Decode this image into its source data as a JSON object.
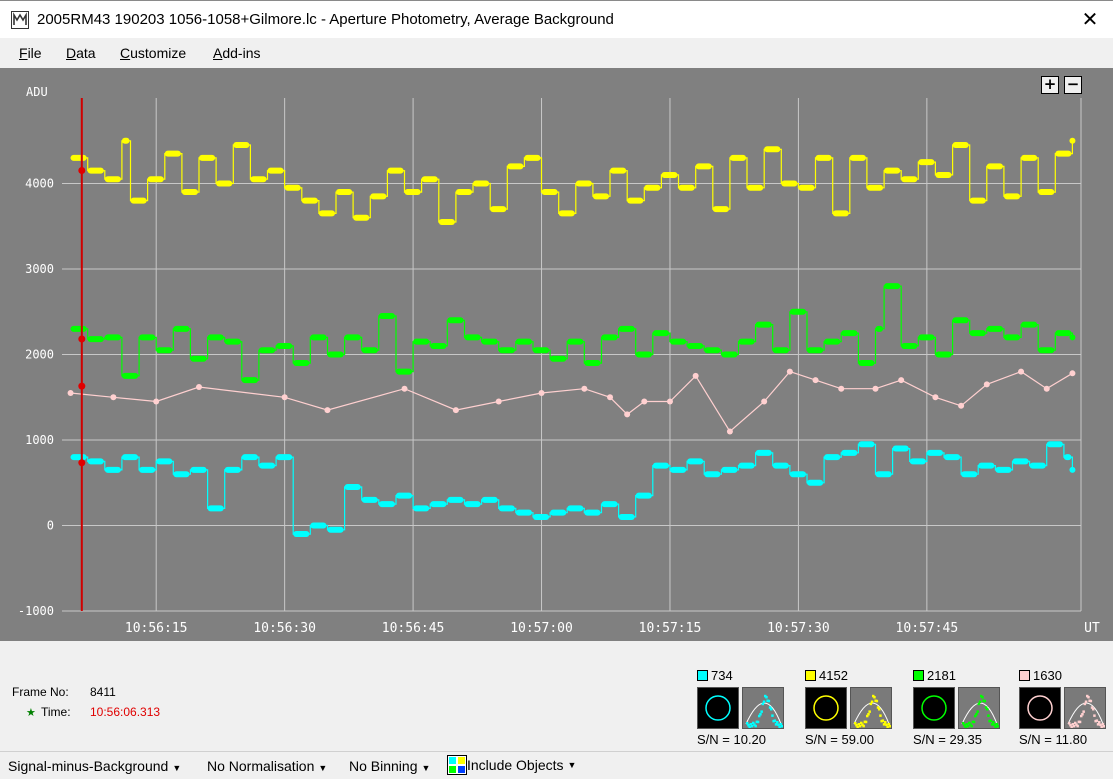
{
  "window": {
    "title": "2005RM43 190203 1056-1058+Gilmore.lc - Aperture Photometry, Average Background",
    "close_glyph": "✕",
    "icon": "app-icon"
  },
  "menu": [
    {
      "hotkey": "F",
      "rest": "ile"
    },
    {
      "hotkey": "D",
      "rest": "ata"
    },
    {
      "hotkey": "C",
      "rest": "ustomize"
    },
    {
      "hotkey": "A",
      "rest": "dd-ins"
    }
  ],
  "zoom": {
    "plus": "+",
    "minus": "−"
  },
  "chart_data": {
    "type": "line",
    "ylabel": "ADU",
    "xlabel": "UT",
    "ylim": [
      -1000,
      5000
    ],
    "yticks": [
      -1000,
      0,
      1000,
      2000,
      3000,
      4000
    ],
    "xlim": [
      "10:56:04",
      "10:58:03"
    ],
    "xticks": [
      "10:56:15",
      "10:56:30",
      "10:56:45",
      "10:57:00",
      "10:57:15",
      "10:57:30",
      "10:57:45"
    ],
    "grid": true,
    "background": "#808080",
    "cursor_time": "10:56:06.313",
    "series": [
      {
        "color": "#ffff00",
        "cursor_value": 4152,
        "points": [
          [
            "10:56:05",
            4300
          ],
          [
            "10:56:07",
            4150
          ],
          [
            "10:56:09",
            4050
          ],
          [
            "10:56:11",
            4500
          ],
          [
            "10:56:12",
            3800
          ],
          [
            "10:56:14",
            4050
          ],
          [
            "10:56:16",
            4350
          ],
          [
            "10:56:18",
            3900
          ],
          [
            "10:56:20",
            4300
          ],
          [
            "10:56:22",
            4000
          ],
          [
            "10:56:24",
            4450
          ],
          [
            "10:56:26",
            4050
          ],
          [
            "10:56:28",
            4150
          ],
          [
            "10:56:30",
            3950
          ],
          [
            "10:56:32",
            3800
          ],
          [
            "10:56:34",
            3650
          ],
          [
            "10:56:36",
            3900
          ],
          [
            "10:56:38",
            3600
          ],
          [
            "10:56:40",
            3850
          ],
          [
            "10:56:42",
            4150
          ],
          [
            "10:56:44",
            3900
          ],
          [
            "10:56:46",
            4050
          ],
          [
            "10:56:48",
            3550
          ],
          [
            "10:56:50",
            3900
          ],
          [
            "10:56:52",
            4000
          ],
          [
            "10:56:54",
            3700
          ],
          [
            "10:56:56",
            4200
          ],
          [
            "10:56:58",
            4300
          ],
          [
            "10:57:00",
            3900
          ],
          [
            "10:57:02",
            3650
          ],
          [
            "10:57:04",
            4000
          ],
          [
            "10:57:06",
            3850
          ],
          [
            "10:57:08",
            4150
          ],
          [
            "10:57:10",
            3800
          ],
          [
            "10:57:12",
            3950
          ],
          [
            "10:57:14",
            4100
          ],
          [
            "10:57:16",
            3950
          ],
          [
            "10:57:18",
            4200
          ],
          [
            "10:57:20",
            3700
          ],
          [
            "10:57:22",
            4300
          ],
          [
            "10:57:24",
            3950
          ],
          [
            "10:57:26",
            4400
          ],
          [
            "10:57:28",
            4000
          ],
          [
            "10:57:30",
            3950
          ],
          [
            "10:57:32",
            4300
          ],
          [
            "10:57:34",
            3650
          ],
          [
            "10:57:36",
            4300
          ],
          [
            "10:57:38",
            3950
          ],
          [
            "10:57:40",
            4150
          ],
          [
            "10:57:42",
            4050
          ],
          [
            "10:57:44",
            4250
          ],
          [
            "10:57:46",
            4100
          ],
          [
            "10:57:48",
            4450
          ],
          [
            "10:57:50",
            3800
          ],
          [
            "10:57:52",
            4200
          ],
          [
            "10:57:54",
            3850
          ],
          [
            "10:57:56",
            4300
          ],
          [
            "10:57:58",
            3900
          ],
          [
            "10:58:00",
            4350
          ],
          [
            "10:58:02",
            4500
          ]
        ]
      },
      {
        "color": "#00ff00",
        "cursor_value": 2181,
        "points": [
          [
            "10:56:05",
            2300
          ],
          [
            "10:56:07",
            2180
          ],
          [
            "10:56:09",
            2200
          ],
          [
            "10:56:11",
            1750
          ],
          [
            "10:56:13",
            2200
          ],
          [
            "10:56:15",
            2050
          ],
          [
            "10:56:17",
            2300
          ],
          [
            "10:56:19",
            1950
          ],
          [
            "10:56:21",
            2200
          ],
          [
            "10:56:23",
            2150
          ],
          [
            "10:56:25",
            1700
          ],
          [
            "10:56:27",
            2050
          ],
          [
            "10:56:29",
            2100
          ],
          [
            "10:56:31",
            1900
          ],
          [
            "10:56:33",
            2200
          ],
          [
            "10:56:35",
            2000
          ],
          [
            "10:56:37",
            2200
          ],
          [
            "10:56:39",
            2050
          ],
          [
            "10:56:41",
            2450
          ],
          [
            "10:56:43",
            1800
          ],
          [
            "10:56:45",
            2150
          ],
          [
            "10:56:47",
            2100
          ],
          [
            "10:56:49",
            2400
          ],
          [
            "10:56:51",
            2200
          ],
          [
            "10:56:53",
            2150
          ],
          [
            "10:56:55",
            2050
          ],
          [
            "10:56:57",
            2150
          ],
          [
            "10:56:59",
            2050
          ],
          [
            "10:57:01",
            1950
          ],
          [
            "10:57:03",
            2150
          ],
          [
            "10:57:05",
            1900
          ],
          [
            "10:57:07",
            2200
          ],
          [
            "10:57:09",
            2300
          ],
          [
            "10:57:11",
            2000
          ],
          [
            "10:57:13",
            2250
          ],
          [
            "10:57:15",
            2150
          ],
          [
            "10:57:17",
            2100
          ],
          [
            "10:57:19",
            2050
          ],
          [
            "10:57:21",
            2000
          ],
          [
            "10:57:23",
            2150
          ],
          [
            "10:57:25",
            2350
          ],
          [
            "10:57:27",
            2050
          ],
          [
            "10:57:29",
            2500
          ],
          [
            "10:57:31",
            2050
          ],
          [
            "10:57:33",
            2150
          ],
          [
            "10:57:35",
            2250
          ],
          [
            "10:57:37",
            1900
          ],
          [
            "10:57:39",
            2300
          ],
          [
            "10:57:40",
            2800
          ],
          [
            "10:57:42",
            2100
          ],
          [
            "10:57:44",
            2200
          ],
          [
            "10:57:46",
            2000
          ],
          [
            "10:57:48",
            2400
          ],
          [
            "10:57:50",
            2250
          ],
          [
            "10:57:52",
            2300
          ],
          [
            "10:57:54",
            2200
          ],
          [
            "10:57:56",
            2350
          ],
          [
            "10:57:58",
            2050
          ],
          [
            "10:58:00",
            2250
          ],
          [
            "10:58:02",
            2200
          ]
        ]
      },
      {
        "color": "#ffd0d0",
        "cursor_value": 1630,
        "points": [
          [
            "10:56:05",
            1550
          ],
          [
            "10:56:10",
            1500
          ],
          [
            "10:56:15",
            1450
          ],
          [
            "10:56:20",
            1620
          ],
          [
            "10:56:30",
            1500
          ],
          [
            "10:56:35",
            1350
          ],
          [
            "10:56:44",
            1600
          ],
          [
            "10:56:50",
            1350
          ],
          [
            "10:56:55",
            1450
          ],
          [
            "10:57:00",
            1550
          ],
          [
            "10:57:05",
            1600
          ],
          [
            "10:57:08",
            1500
          ],
          [
            "10:57:10",
            1300
          ],
          [
            "10:57:12",
            1450
          ],
          [
            "10:57:15",
            1450
          ],
          [
            "10:57:18",
            1750
          ],
          [
            "10:57:22",
            1100
          ],
          [
            "10:57:26",
            1450
          ],
          [
            "10:57:29",
            1800
          ],
          [
            "10:57:32",
            1700
          ],
          [
            "10:57:35",
            1600
          ],
          [
            "10:57:39",
            1600
          ],
          [
            "10:57:42",
            1700
          ],
          [
            "10:57:46",
            1500
          ],
          [
            "10:57:49",
            1400
          ],
          [
            "10:57:52",
            1650
          ],
          [
            "10:57:56",
            1800
          ],
          [
            "10:57:59",
            1600
          ],
          [
            "10:58:02",
            1780
          ]
        ]
      },
      {
        "color": "#00ffff",
        "cursor_value": 734,
        "points": [
          [
            "10:56:05",
            800
          ],
          [
            "10:56:07",
            750
          ],
          [
            "10:56:09",
            650
          ],
          [
            "10:56:11",
            800
          ],
          [
            "10:56:13",
            650
          ],
          [
            "10:56:15",
            750
          ],
          [
            "10:56:17",
            600
          ],
          [
            "10:56:19",
            650
          ],
          [
            "10:56:21",
            200
          ],
          [
            "10:56:23",
            650
          ],
          [
            "10:56:25",
            800
          ],
          [
            "10:56:27",
            700
          ],
          [
            "10:56:29",
            800
          ],
          [
            "10:56:31",
            -100
          ],
          [
            "10:56:33",
            0
          ],
          [
            "10:56:35",
            -50
          ],
          [
            "10:56:37",
            450
          ],
          [
            "10:56:39",
            300
          ],
          [
            "10:56:41",
            250
          ],
          [
            "10:56:43",
            350
          ],
          [
            "10:56:45",
            200
          ],
          [
            "10:56:47",
            250
          ],
          [
            "10:56:49",
            300
          ],
          [
            "10:56:51",
            250
          ],
          [
            "10:56:53",
            300
          ],
          [
            "10:56:55",
            200
          ],
          [
            "10:56:57",
            150
          ],
          [
            "10:56:59",
            100
          ],
          [
            "10:57:01",
            150
          ],
          [
            "10:57:03",
            200
          ],
          [
            "10:57:05",
            150
          ],
          [
            "10:57:07",
            250
          ],
          [
            "10:57:09",
            100
          ],
          [
            "10:57:11",
            350
          ],
          [
            "10:57:13",
            700
          ],
          [
            "10:57:15",
            650
          ],
          [
            "10:57:17",
            750
          ],
          [
            "10:57:19",
            600
          ],
          [
            "10:57:21",
            650
          ],
          [
            "10:57:23",
            700
          ],
          [
            "10:57:25",
            850
          ],
          [
            "10:57:27",
            700
          ],
          [
            "10:57:29",
            600
          ],
          [
            "10:57:31",
            500
          ],
          [
            "10:57:33",
            800
          ],
          [
            "10:57:35",
            850
          ],
          [
            "10:57:37",
            950
          ],
          [
            "10:57:39",
            600
          ],
          [
            "10:57:41",
            900
          ],
          [
            "10:57:43",
            750
          ],
          [
            "10:57:45",
            850
          ],
          [
            "10:57:47",
            800
          ],
          [
            "10:57:49",
            600
          ],
          [
            "10:57:51",
            700
          ],
          [
            "10:57:53",
            650
          ],
          [
            "10:57:55",
            750
          ],
          [
            "10:57:57",
            700
          ],
          [
            "10:57:59",
            950
          ],
          [
            "10:58:01",
            800
          ],
          [
            "10:58:02",
            650
          ]
        ]
      }
    ]
  },
  "frame": {
    "label": "Frame No:",
    "value": "8411",
    "time_label": "Time:",
    "time_value": "10:56:06.313",
    "star": "★"
  },
  "objects": [
    {
      "value": "734",
      "color": "#00ffff",
      "sn_label": "S/N =",
      "sn": "10.20"
    },
    {
      "value": "4152",
      "color": "#ffff00",
      "sn_label": "S/N =",
      "sn": "59.00"
    },
    {
      "value": "2181",
      "color": "#00ff00",
      "sn_label": "S/N =",
      "sn": "29.35"
    },
    {
      "value": "1630",
      "color": "#ffd0d0",
      "sn_label": "S/N =",
      "sn": "11.80"
    }
  ],
  "status": {
    "signal": "Signal-minus-Background",
    "normalisation": "No Normalisation",
    "binning": "No Binning",
    "include": "Include Objects"
  }
}
